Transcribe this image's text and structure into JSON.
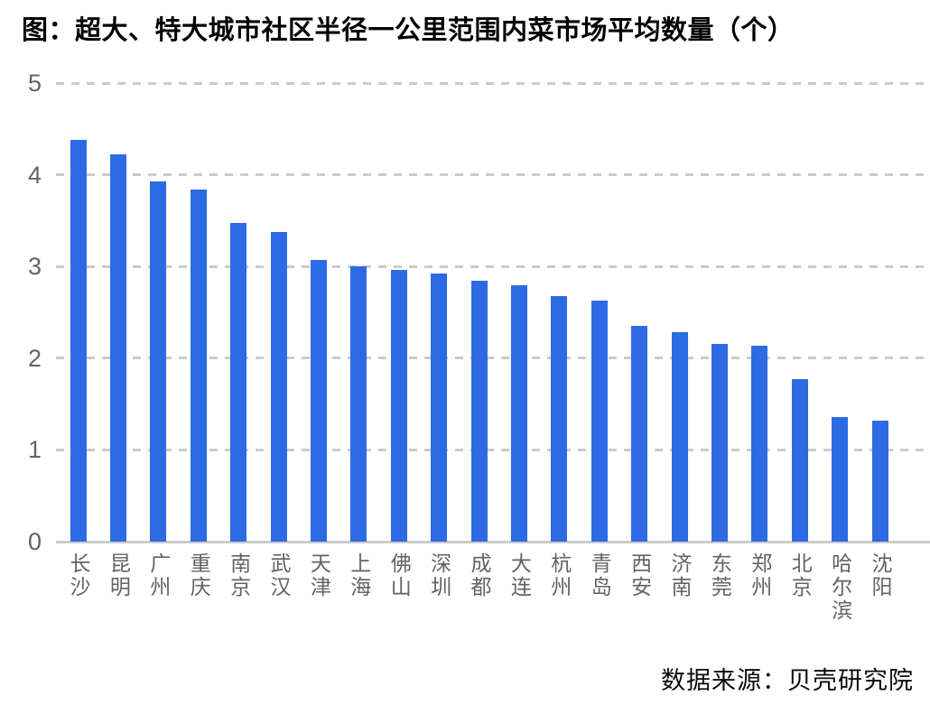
{
  "page": {
    "title": "图：超大、特大城市社区半径一公里范围内菜市场平均数量（个）",
    "source": "数据来源：贝壳研究院"
  },
  "chart_data": {
    "type": "bar",
    "title": "超大、特大城市社区半径一公里范围内菜市场平均数量（个）",
    "categories": [
      "长沙",
      "昆明",
      "广州",
      "重庆",
      "南京",
      "武汉",
      "天津",
      "上海",
      "佛山",
      "深圳",
      "成都",
      "大连",
      "杭州",
      "青岛",
      "西安",
      "济南",
      "东莞",
      "郑州",
      "北京",
      "哈尔滨",
      "沈阳"
    ],
    "values": [
      4.38,
      4.22,
      3.93,
      3.84,
      3.47,
      3.38,
      3.07,
      3.0,
      2.96,
      2.92,
      2.84,
      2.8,
      2.68,
      2.63,
      2.35,
      2.28,
      2.16,
      2.14,
      1.77,
      1.36,
      1.32
    ],
    "xlabel": "",
    "ylabel": "",
    "ylim": [
      0,
      5
    ],
    "yticks": [
      0,
      1,
      2,
      3,
      4,
      5
    ],
    "grid": "horizontal-dashed",
    "legend": "none",
    "bar_color": "#2D6BE4",
    "gridline_color": "#CBCBCB",
    "axis_label_color": "#636363",
    "source": "数据来源：贝壳研究院"
  }
}
